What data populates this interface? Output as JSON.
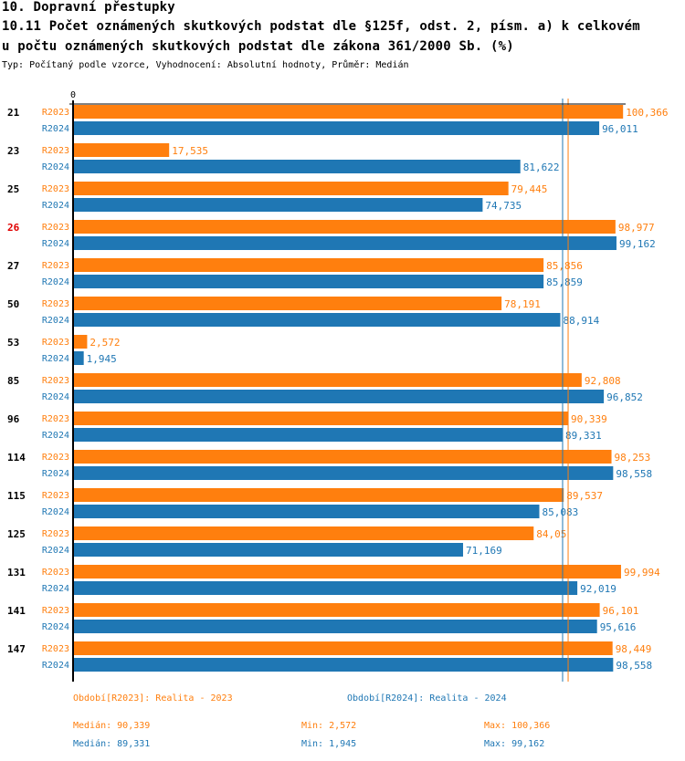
{
  "header": {
    "section_title": "10. Dopravní přestupky",
    "chart_title_line1": "10.11 Počet oznámených skutkových podstat dle §125f, odst. 2, písm. a) k celkovém",
    "chart_title_line2": "u počtu oznámených skutkových podstat dle zákona 361/2000 Sb. (%)",
    "subtitle": "Typ: Počítaný podle vzorce, Vyhodnocení: Absolutní hodnoty, Průměr: Medián"
  },
  "colors": {
    "R2023": "#ff7f0e",
    "R2024": "#1f77b4",
    "highlight_category": "#e00000",
    "axis": "#000000"
  },
  "chart_data": {
    "type": "bar",
    "orientation": "horizontal",
    "title": "10.11 Počet oznámených skutkových podstat dle §125f, odst. 2, písm. a) k celkovému počtu oznámených skutkových podstat dle zákona 361/2000 Sb. (%)",
    "xlabel": "",
    "ylabel": "",
    "x_tick_labels": [
      "0"
    ],
    "xlim": [
      0,
      101
    ],
    "categories": [
      "21",
      "23",
      "25",
      "26",
      "27",
      "50",
      "53",
      "85",
      "96",
      "114",
      "115",
      "125",
      "131",
      "141",
      "147"
    ],
    "highlighted_category": "26",
    "series": [
      {
        "name": "R2023",
        "label": "R2023",
        "values": [
          100.366,
          17.535,
          79.445,
          98.977,
          85.856,
          78.191,
          2.572,
          92.808,
          90.339,
          98.253,
          89.537,
          84.05,
          99.994,
          96.101,
          98.449
        ],
        "value_labels": [
          "100,366",
          "17,535",
          "79,445",
          "98,977",
          "85,856",
          "78,191",
          "2,572",
          "92,808",
          "90,339",
          "98,253",
          "89,537",
          "84,05",
          "99,994",
          "96,101",
          "98,449"
        ]
      },
      {
        "name": "R2024",
        "label": "R2024",
        "values": [
          96.011,
          81.622,
          74.735,
          99.162,
          85.859,
          88.914,
          1.945,
          96.852,
          89.331,
          98.558,
          85.083,
          71.169,
          92.019,
          95.616,
          98.558
        ],
        "value_labels": [
          "96,011",
          "81,622",
          "74,735",
          "99,162",
          "85,859",
          "88,914",
          "1,945",
          "96,852",
          "89,331",
          "98,558",
          "85,083",
          "71,169",
          "92,019",
          "95,616",
          "98,558"
        ]
      }
    ],
    "reference_lines": [
      {
        "series": "R2024",
        "type": "median",
        "value": 89.331
      },
      {
        "series": "R2023",
        "type": "median",
        "value": 90.339
      }
    ],
    "legend": {
      "placement": "bottom",
      "entries": [
        "Období[R2023]: Realita - 2023",
        "Období[R2024]: Realita - 2024"
      ]
    },
    "grid": false
  },
  "footer": {
    "legend_2023": "Období[R2023]: Realita - 2023",
    "legend_2024": "Období[R2024]: Realita - 2024",
    "stats_2023": {
      "median": "Medián: 90,339",
      "min": "Min: 2,572",
      "max": "Max: 100,366"
    },
    "stats_2024": {
      "median": "Medián: 89,331",
      "min": "Min: 1,945",
      "max": "Max: 99,162"
    }
  }
}
